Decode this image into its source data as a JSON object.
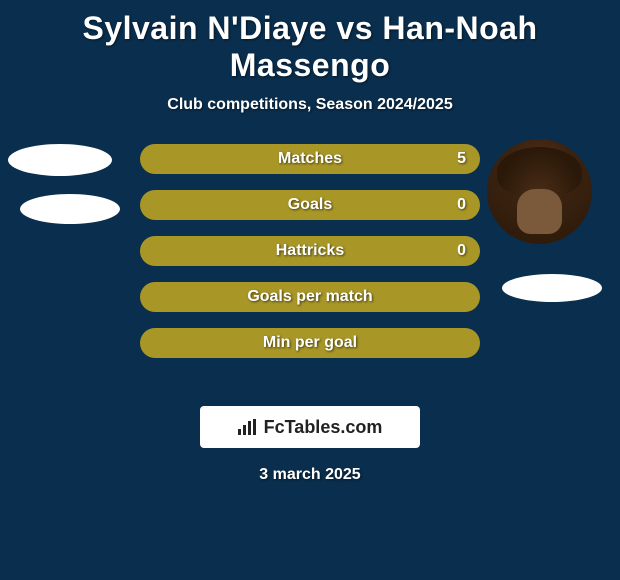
{
  "title": "Sylvain N'Diaye vs Han-Noah Massengo",
  "subtitle": "Club competitions, Season 2024/2025",
  "date": "3 march 2025",
  "background_color": "#0a2e4d",
  "text_color": "#ffffff",
  "logo": {
    "text": "FcTables.com",
    "box_bg": "#ffffff",
    "text_color": "#222222"
  },
  "bar_style": {
    "height": 30,
    "border_radius": 16,
    "spacing": 16,
    "label_fontsize": 16,
    "label_weight": "bold"
  },
  "stats": [
    {
      "label": "Matches",
      "value_right": "5",
      "color_full": "#a89627",
      "show_right_value": true
    },
    {
      "label": "Goals",
      "value_right": "0",
      "color_full": "#a89627",
      "show_right_value": true
    },
    {
      "label": "Hattricks",
      "value_right": "0",
      "color_full": "#a89627",
      "show_right_value": true
    },
    {
      "label": "Goals per match",
      "value_right": "",
      "color_full": "#a89627",
      "show_right_value": false
    },
    {
      "label": "Min per goal",
      "value_right": "",
      "color_full": "#a89627",
      "show_right_value": false
    }
  ],
  "avatars": {
    "left_placeholder_color": "#ffffff",
    "right_placeholder_color": "#ffffff"
  }
}
